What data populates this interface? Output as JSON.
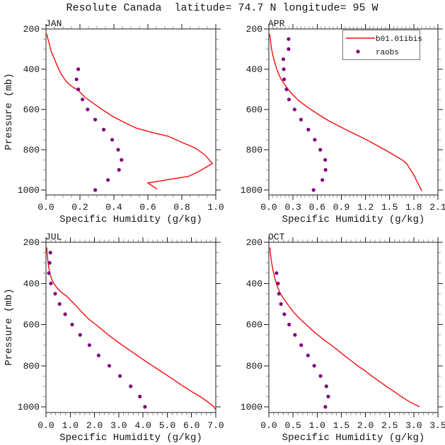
{
  "title": "Resolute Canada  latitude= 74.7 N longitude= 95 W",
  "colors": {
    "model_line": "#f20c0c",
    "raobs_marker": "#7d087d",
    "frame": "#1c1c1c",
    "minor_tick": "#9e9e9e",
    "legend_border": "#767676",
    "text": "#151515"
  },
  "legend": {
    "entries": [
      {
        "label": "b01.01ibis",
        "type": "line",
        "series": "model"
      },
      {
        "label": "raobs",
        "type": "marker",
        "series": "raobs"
      }
    ]
  },
  "chart_data": [
    {
      "type": "line",
      "month": "JAN",
      "xlabel": "Specific Humidity (g/kg)",
      "ylabel": "Pressure (mb)",
      "show_ylabel": true,
      "has_legend": false,
      "xlim": [
        0.0,
        1.0
      ],
      "x_major": [
        0.0,
        0.2,
        0.4,
        0.6,
        0.8,
        1.0
      ],
      "x_tick_labels": [
        "0.0",
        "0.2",
        "0.4",
        "0.6",
        "0.8",
        "1.0"
      ],
      "x_minor_step": 0.05,
      "y_major": [
        200,
        400,
        600,
        800,
        1000
      ],
      "y_tick_labels": [
        "200",
        "400",
        "600",
        "800",
        "1000"
      ],
      "y_minor_step": 50,
      "series": [
        {
          "name": "b01.01ibis",
          "type": "line",
          "color": "#f20c0c",
          "points": [
            [
              0.005,
              225
            ],
            [
              0.01,
              245
            ],
            [
              0.02,
              275
            ],
            [
              0.03,
              310
            ],
            [
              0.05,
              350
            ],
            [
              0.07,
              390
            ],
            [
              0.09,
              425
            ],
            [
              0.12,
              462
            ],
            [
              0.155,
              487
            ],
            [
              0.19,
              505
            ],
            [
              0.23,
              540
            ],
            [
              0.28,
              570
            ],
            [
              0.33,
              600
            ],
            [
              0.4,
              638
            ],
            [
              0.47,
              668
            ],
            [
              0.53,
              692
            ],
            [
              0.63,
              715
            ],
            [
              0.72,
              733
            ],
            [
              0.8,
              763
            ],
            [
              0.88,
              792
            ],
            [
              0.935,
              825
            ],
            [
              0.98,
              868
            ],
            [
              0.9,
              908
            ],
            [
              0.84,
              932
            ],
            [
              0.6,
              965
            ],
            [
              0.655,
              996
            ]
          ]
        },
        {
          "name": "raobs",
          "type": "scatter",
          "color": "#7d087d",
          "points": [
            [
              0.19,
              400
            ],
            [
              0.18,
              450
            ],
            [
              0.19,
              500
            ],
            [
              0.215,
              550
            ],
            [
              0.245,
              600
            ],
            [
              0.29,
              650
            ],
            [
              0.34,
              700
            ],
            [
              0.39,
              750
            ],
            [
              0.425,
              800
            ],
            [
              0.445,
              850
            ],
            [
              0.43,
              900
            ],
            [
              0.365,
              950
            ],
            [
              0.29,
              1000
            ]
          ]
        }
      ]
    },
    {
      "type": "line",
      "month": "APR",
      "xlabel": "Specific Humidity (g/kg)",
      "ylabel": "Pressure (mb)",
      "show_ylabel": false,
      "has_legend": true,
      "xlim": [
        0.0,
        2.1
      ],
      "x_major": [
        0.0,
        0.3,
        0.6,
        0.9,
        1.2,
        1.5,
        1.8,
        2.1
      ],
      "x_tick_labels": [
        "0.0",
        "0.3",
        "0.6",
        "0.9",
        "1.2",
        "1.5",
        "1.8",
        "2.1"
      ],
      "x_minor_step": 0.05,
      "y_major": [
        200,
        400,
        600,
        800,
        1000
      ],
      "y_tick_labels": [
        "200",
        "400",
        "600",
        "800",
        "1000"
      ],
      "y_minor_step": 50,
      "series": [
        {
          "name": "b01.01ibis",
          "type": "line",
          "color": "#f20c0c",
          "points": [
            [
              0.01,
              225
            ],
            [
              0.02,
              255
            ],
            [
              0.03,
              292
            ],
            [
              0.05,
              330
            ],
            [
              0.07,
              362
            ],
            [
              0.095,
              395
            ],
            [
              0.12,
              422
            ],
            [
              0.15,
              448
            ],
            [
              0.19,
              472
            ],
            [
              0.24,
              500
            ],
            [
              0.3,
              528
            ],
            [
              0.37,
              555
            ],
            [
              0.45,
              580
            ],
            [
              0.54,
              605
            ],
            [
              0.645,
              632
            ],
            [
              0.75,
              658
            ],
            [
              0.87,
              682
            ],
            [
              0.98,
              705
            ],
            [
              1.1,
              728
            ],
            [
              1.22,
              752
            ],
            [
              1.34,
              778
            ],
            [
              1.45,
              802
            ],
            [
              1.56,
              828
            ],
            [
              1.66,
              852
            ],
            [
              1.71,
              868
            ],
            [
              1.76,
              900
            ],
            [
              1.81,
              932
            ],
            [
              1.84,
              958
            ],
            [
              1.87,
              980
            ],
            [
              1.9,
              1005
            ]
          ]
        },
        {
          "name": "raobs",
          "type": "scatter",
          "color": "#7d087d",
          "points": [
            [
              0.245,
              250
            ],
            [
              0.245,
              300
            ],
            [
              0.18,
              350
            ],
            [
              0.185,
              400
            ],
            [
              0.19,
              450
            ],
            [
              0.22,
              500
            ],
            [
              0.25,
              550
            ],
            [
              0.32,
              600
            ],
            [
              0.4,
              650
            ],
            [
              0.49,
              700
            ],
            [
              0.57,
              750
            ],
            [
              0.64,
              800
            ],
            [
              0.7,
              850
            ],
            [
              0.705,
              900
            ],
            [
              0.665,
              950
            ],
            [
              0.555,
              1000
            ]
          ]
        }
      ]
    },
    {
      "type": "line",
      "month": "JUL",
      "xlabel": "Specific Humidity (g/kg)",
      "ylabel": "Pressure (mb)",
      "show_ylabel": true,
      "has_legend": false,
      "xlim": [
        0.0,
        7.0
      ],
      "x_major": [
        0.0,
        1.0,
        2.0,
        3.0,
        4.0,
        5.0,
        6.0,
        7.0
      ],
      "x_tick_labels": [
        "0.0",
        "1.0",
        "2.0",
        "3.0",
        "4.0",
        "5.0",
        "6.0",
        "7.0"
      ],
      "x_minor_step": 0.2,
      "y_major": [
        200,
        400,
        600,
        800,
        1000
      ],
      "y_tick_labels": [
        "200",
        "400",
        "600",
        "800",
        "1000"
      ],
      "y_minor_step": 50,
      "series": [
        {
          "name": "b01.01ibis",
          "type": "line",
          "color": "#f20c0c",
          "points": [
            [
              0.03,
              225
            ],
            [
              0.05,
              258
            ],
            [
              0.08,
              292
            ],
            [
              0.12,
              325
            ],
            [
              0.17,
              355
            ],
            [
              0.25,
              385
            ],
            [
              0.35,
              405
            ],
            [
              0.5,
              428
            ],
            [
              0.68,
              447
            ],
            [
              0.88,
              465
            ],
            [
              1.06,
              487
            ],
            [
              1.25,
              510
            ],
            [
              1.42,
              532
            ],
            [
              1.58,
              552
            ],
            [
              1.78,
              575
            ],
            [
              2.05,
              600
            ],
            [
              2.32,
              625
            ],
            [
              2.57,
              650
            ],
            [
              2.85,
              675
            ],
            [
              3.14,
              700
            ],
            [
              3.45,
              725
            ],
            [
              3.76,
              750
            ],
            [
              4.07,
              775
            ],
            [
              4.39,
              800
            ],
            [
              4.71,
              825
            ],
            [
              5.03,
              850
            ],
            [
              5.35,
              875
            ],
            [
              5.66,
              900
            ],
            [
              6.0,
              925
            ],
            [
              6.35,
              950
            ],
            [
              6.66,
              975
            ],
            [
              6.93,
              1000
            ],
            [
              6.98,
              1012
            ]
          ]
        },
        {
          "name": "raobs",
          "type": "scatter",
          "color": "#7d087d",
          "points": [
            [
              0.18,
              250
            ],
            [
              0.15,
              300
            ],
            [
              0.12,
              350
            ],
            [
              0.2,
              400
            ],
            [
              0.38,
              450
            ],
            [
              0.56,
              500
            ],
            [
              0.79,
              550
            ],
            [
              1.08,
              600
            ],
            [
              1.41,
              650
            ],
            [
              1.79,
              700
            ],
            [
              2.17,
              750
            ],
            [
              2.61,
              800
            ],
            [
              3.05,
              850
            ],
            [
              3.49,
              900
            ],
            [
              3.87,
              950
            ],
            [
              4.08,
              1000
            ]
          ]
        }
      ]
    },
    {
      "type": "line",
      "month": "OCT",
      "xlabel": "Specific Humidity (g/kg)",
      "ylabel": "Pressure (mb)",
      "show_ylabel": false,
      "has_legend": false,
      "xlim": [
        0.0,
        3.5
      ],
      "x_major": [
        0.0,
        0.5,
        1.0,
        1.5,
        2.0,
        2.5,
        3.0,
        3.5
      ],
      "x_tick_labels": [
        "0.0",
        "0.5",
        "1.0",
        "1.5",
        "2.0",
        "2.5",
        "3.0",
        "3.5"
      ],
      "x_minor_step": 0.1,
      "y_major": [
        200,
        400,
        600,
        800,
        1000
      ],
      "y_tick_labels": [
        "200",
        "400",
        "600",
        "800",
        "1000"
      ],
      "y_minor_step": 50,
      "series": [
        {
          "name": "b01.01ibis",
          "type": "line",
          "color": "#f20c0c",
          "points": [
            [
              0.02,
              225
            ],
            [
              0.035,
              260
            ],
            [
              0.055,
              295
            ],
            [
              0.08,
              330
            ],
            [
              0.11,
              362
            ],
            [
              0.145,
              392
            ],
            [
              0.185,
              420
            ],
            [
              0.23,
              445
            ],
            [
              0.29,
              468
            ],
            [
              0.36,
              492
            ],
            [
              0.44,
              518
            ],
            [
              0.52,
              542
            ],
            [
              0.6,
              562
            ],
            [
              0.69,
              582
            ],
            [
              0.78,
              602
            ],
            [
              0.9,
              628
            ],
            [
              1.02,
              652
            ],
            [
              1.16,
              678
            ],
            [
              1.29,
              700
            ],
            [
              1.43,
              725
            ],
            [
              1.56,
              750
            ],
            [
              1.7,
              775
            ],
            [
              1.84,
              800
            ],
            [
              1.99,
              825
            ],
            [
              2.13,
              850
            ],
            [
              2.28,
              875
            ],
            [
              2.43,
              900
            ],
            [
              2.59,
              925
            ],
            [
              2.74,
              950
            ],
            [
              2.91,
              975
            ],
            [
              3.12,
              1000
            ]
          ]
        },
        {
          "name": "raobs",
          "type": "scatter",
          "color": "#7d087d",
          "points": [
            [
              0.16,
              350
            ],
            [
              0.19,
              400
            ],
            [
              0.21,
              450
            ],
            [
              0.25,
              500
            ],
            [
              0.32,
              550
            ],
            [
              0.42,
              600
            ],
            [
              0.54,
              650
            ],
            [
              0.67,
              700
            ],
            [
              0.81,
              750
            ],
            [
              0.94,
              800
            ],
            [
              1.07,
              850
            ],
            [
              1.19,
              900
            ],
            [
              1.23,
              950
            ],
            [
              1.17,
              1000
            ]
          ]
        }
      ]
    }
  ]
}
